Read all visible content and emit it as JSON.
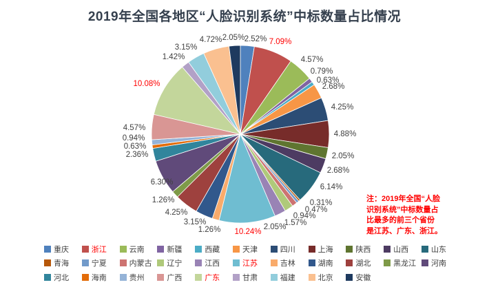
{
  "title": "2019年全国各地区“人脸识别系统”中标数量占比情况",
  "chart_data": {
    "type": "pie",
    "title": "2019年全国各地区“人脸识别系统”中标数量占比情况",
    "unit": "%",
    "direction": "clockwise",
    "start_angle_deg": 0,
    "legend_position": "bottom",
    "label_style": "percent-outside",
    "slices": [
      {
        "name": "重庆",
        "value": 2.52,
        "color": "#4F81BD",
        "highlighted": false
      },
      {
        "name": "浙江",
        "value": 7.09,
        "color": "#C0504D",
        "highlighted": true
      },
      {
        "name": "云南",
        "value": 4.57,
        "color": "#9BBB59",
        "highlighted": false
      },
      {
        "name": "新疆",
        "value": 0.79,
        "color": "#8064A2",
        "highlighted": false
      },
      {
        "name": "西藏",
        "value": 0.63,
        "color": "#4BACC6",
        "highlighted": false
      },
      {
        "name": "天津",
        "value": 2.68,
        "color": "#F79646",
        "highlighted": false
      },
      {
        "name": "四川",
        "value": 4.25,
        "color": "#2C4D75",
        "highlighted": false
      },
      {
        "name": "上海",
        "value": 4.88,
        "color": "#772C2A",
        "highlighted": false
      },
      {
        "name": "陕西",
        "value": 2.05,
        "color": "#5F7530",
        "highlighted": false
      },
      {
        "name": "山西",
        "value": 2.68,
        "color": "#4D3B62",
        "highlighted": false
      },
      {
        "name": "山东",
        "value": 6.14,
        "color": "#276A7C",
        "highlighted": false
      },
      {
        "name": "青海",
        "value": 0.31,
        "color": "#B65708",
        "highlighted": false
      },
      {
        "name": "宁夏",
        "value": 0.47,
        "color": "#729ACA",
        "highlighted": false
      },
      {
        "name": "内蒙古",
        "value": 0.94,
        "color": "#CD7371",
        "highlighted": false
      },
      {
        "name": "辽宁",
        "value": 1.57,
        "color": "#AFC97A",
        "highlighted": false
      },
      {
        "name": "江西",
        "value": 2.05,
        "color": "#9983B5",
        "highlighted": false
      },
      {
        "name": "江苏",
        "value": 10.24,
        "color": "#6FBDD1",
        "highlighted": true
      },
      {
        "name": "吉林",
        "value": 1.26,
        "color": "#F9AB6B",
        "highlighted": false
      },
      {
        "name": "湖南",
        "value": 3.15,
        "color": "#31588C",
        "highlighted": false
      },
      {
        "name": "湖北",
        "value": 4.25,
        "color": "#9E413E",
        "highlighted": false
      },
      {
        "name": "黑龙江",
        "value": 1.26,
        "color": "#7E9A48",
        "highlighted": false
      },
      {
        "name": "河南",
        "value": 6.3,
        "color": "#604A7A",
        "highlighted": false
      },
      {
        "name": "河北",
        "value": 2.36,
        "color": "#31859C",
        "highlighted": false
      },
      {
        "name": "海南",
        "value": 0.63,
        "color": "#E36C09",
        "highlighted": false
      },
      {
        "name": "贵州",
        "value": 0.94,
        "color": "#95B3D7",
        "highlighted": false
      },
      {
        "name": "广西",
        "value": 4.57,
        "color": "#D99694",
        "highlighted": false
      },
      {
        "name": "广东",
        "value": 10.08,
        "color": "#C3D69B",
        "highlighted": true
      },
      {
        "name": "甘肃",
        "value": 1.42,
        "color": "#B2A1C7",
        "highlighted": false
      },
      {
        "name": "福建",
        "value": 3.15,
        "color": "#92CDDC",
        "highlighted": false
      },
      {
        "name": "北京",
        "value": 4.72,
        "color": "#FAC090",
        "highlighted": false
      },
      {
        "name": "安徽",
        "value": 2.05,
        "color": "#1E3A5F",
        "highlighted": false
      }
    ]
  },
  "note": {
    "lines": [
      "注：2019年全国“人脸",
      "识别系统”中标数量占",
      "比最多的前三个省份",
      "是江苏、广东、浙江。"
    ]
  },
  "colors": {
    "title_text": "#35404e",
    "label_text": "#404040",
    "highlight_text": "#FF0000",
    "note_text": "#FF0000",
    "legend_text": "#404040",
    "background": "#FFFFFF"
  }
}
